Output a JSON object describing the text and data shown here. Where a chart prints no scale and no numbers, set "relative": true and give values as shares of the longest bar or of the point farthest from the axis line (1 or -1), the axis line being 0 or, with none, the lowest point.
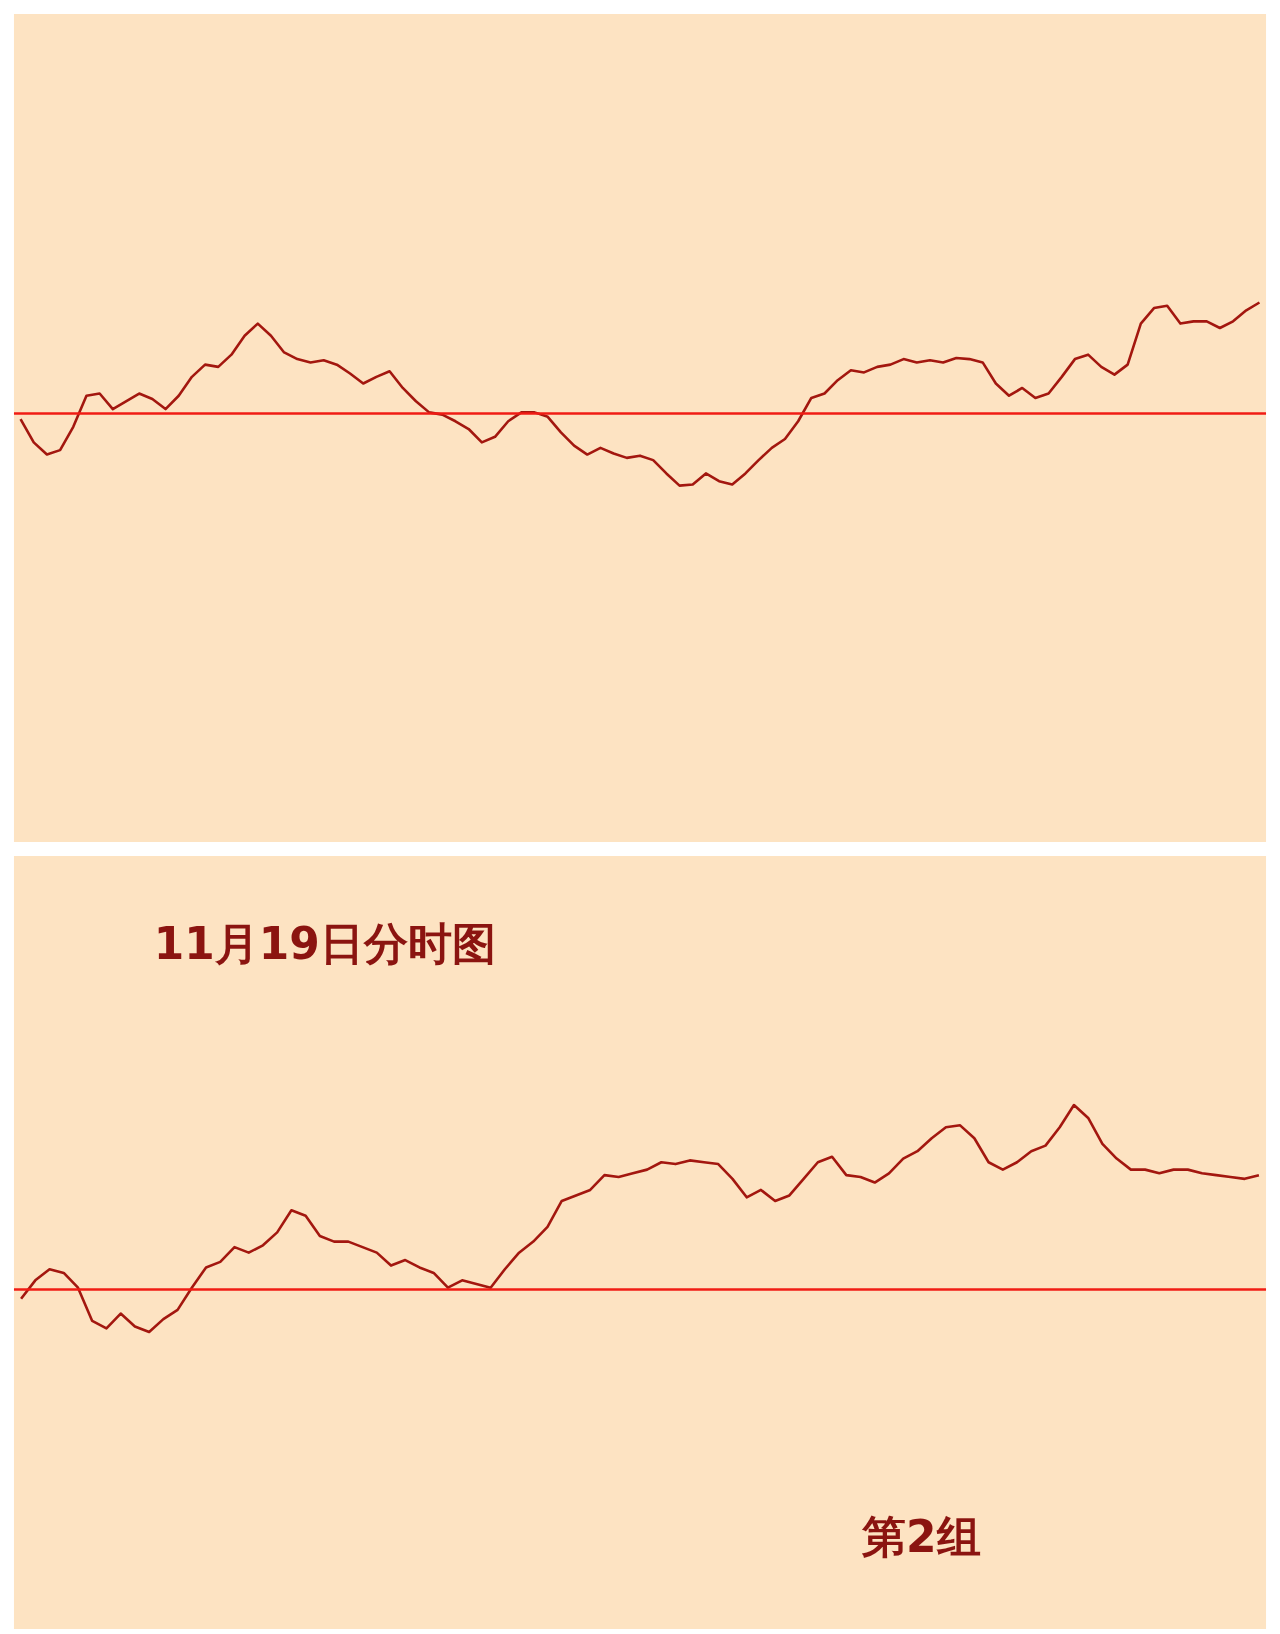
{
  "chart_data": [
    {
      "type": "line",
      "relative": true,
      "categories": [
        null,
        null,
        null,
        null,
        null,
        null,
        null,
        null,
        null,
        null,
        null,
        null,
        null,
        null,
        null,
        null,
        null,
        null,
        null,
        null,
        null,
        null,
        null,
        null,
        null,
        null,
        null,
        null,
        null,
        null,
        null,
        null,
        null,
        null,
        null,
        null,
        null,
        null,
        null,
        null,
        null,
        null,
        null,
        null,
        null,
        null,
        null,
        null,
        null,
        null,
        null,
        null,
        null,
        null,
        null,
        null,
        null,
        null,
        null,
        null,
        null,
        null,
        null,
        null,
        null,
        null,
        null,
        null,
        null,
        null,
        null,
        null,
        null,
        null,
        null,
        null,
        null,
        null,
        null,
        null,
        null,
        null,
        null,
        null,
        null,
        null,
        null,
        null,
        null,
        null,
        null,
        null,
        null,
        null,
        null
      ],
      "series": [
        {
          "color": "#a3170f",
          "values": [
            -0.05,
            -0.26,
            -0.37,
            -0.33,
            -0.12,
            0.16,
            0.18,
            0.04,
            0.11,
            0.18,
            0.13,
            0.04,
            0.16,
            0.33,
            0.44,
            0.42,
            0.53,
            0.7,
            0.81,
            0.7,
            0.55,
            0.49,
            0.46,
            0.48,
            0.44,
            0.36,
            0.27,
            0.33,
            0.38,
            0.23,
            0.11,
            0.01,
            -0.01,
            -0.07,
            -0.14,
            -0.26,
            -0.21,
            -0.07,
            0.01,
            0.01,
            -0.03,
            -0.17,
            -0.29,
            -0.37,
            -0.31,
            -0.36,
            -0.4,
            -0.38,
            -0.42,
            -0.54,
            -0.65,
            -0.64,
            -0.54,
            -0.61,
            -0.64,
            -0.54,
            -0.42,
            -0.31,
            -0.23,
            -0.07,
            0.14,
            0.18,
            0.3,
            0.39,
            0.37,
            0.42,
            0.44,
            0.49,
            0.46,
            0.48,
            0.46,
            0.5,
            0.49,
            0.46,
            0.27,
            0.16,
            0.23,
            0.14,
            0.18,
            0.33,
            0.49,
            0.53,
            0.42,
            0.35,
            0.44,
            0.81,
            0.95,
            0.97,
            0.81,
            0.83,
            0.83,
            0.77,
            0.83,
            0.93,
            1
          ]
        }
      ],
      "ref_lines": [
        {
          "axis": "y",
          "value": 0,
          "color": "#f01c14"
        }
      ],
      "tick_labels": false
    },
    {
      "type": "line",
      "relative": true,
      "categories": [
        null,
        null,
        null,
        null,
        null,
        null,
        null,
        null,
        null,
        null,
        null,
        null,
        null,
        null,
        null,
        null,
        null,
        null,
        null,
        null,
        null,
        null,
        null,
        null,
        null,
        null,
        null,
        null,
        null,
        null,
        null,
        null,
        null,
        null,
        null,
        null,
        null,
        null,
        null,
        null,
        null,
        null,
        null,
        null,
        null,
        null,
        null,
        null,
        null,
        null,
        null,
        null,
        null,
        null,
        null,
        null,
        null,
        null,
        null,
        null,
        null,
        null,
        null,
        null,
        null,
        null,
        null,
        null,
        null,
        null,
        null,
        null,
        null,
        null,
        null,
        null,
        null,
        null,
        null,
        null,
        null,
        null,
        null,
        null,
        null,
        null,
        null,
        null
      ],
      "series": [
        {
          "color": "#a3170f",
          "values": [
            -0.05,
            0.05,
            0.11,
            0.09,
            0.01,
            -0.17,
            -0.21,
            -0.13,
            -0.2,
            -0.23,
            -0.16,
            -0.11,
            0.01,
            0.12,
            0.15,
            0.23,
            0.2,
            0.24,
            0.31,
            0.43,
            0.4,
            0.29,
            0.26,
            0.26,
            0.23,
            0.2,
            0.13,
            0.16,
            0.12,
            0.09,
            0.01,
            0.05,
            0.03,
            0.01,
            0.11,
            0.2,
            0.26,
            0.34,
            0.48,
            0.51,
            0.54,
            0.62,
            0.61,
            0.63,
            0.65,
            0.69,
            0.68,
            0.7,
            0.69,
            0.68,
            0.6,
            0.5,
            0.54,
            0.48,
            0.51,
            0.6,
            0.69,
            0.72,
            0.62,
            0.61,
            0.58,
            0.63,
            0.71,
            0.75,
            0.82,
            0.88,
            0.89,
            0.82,
            0.69,
            0.65,
            0.69,
            0.75,
            0.78,
            0.88,
            1,
            0.93,
            0.79,
            0.71,
            0.65,
            0.65,
            0.63,
            0.65,
            0.65,
            0.63,
            0.62,
            0.61,
            0.6,
            0.62
          ]
        }
      ],
      "ref_lines": [
        {
          "axis": "y",
          "value": 0,
          "color": "#f01c14"
        }
      ],
      "annotations": [
        "11月19日分时图",
        "第2组"
      ],
      "tick_labels": false
    }
  ]
}
